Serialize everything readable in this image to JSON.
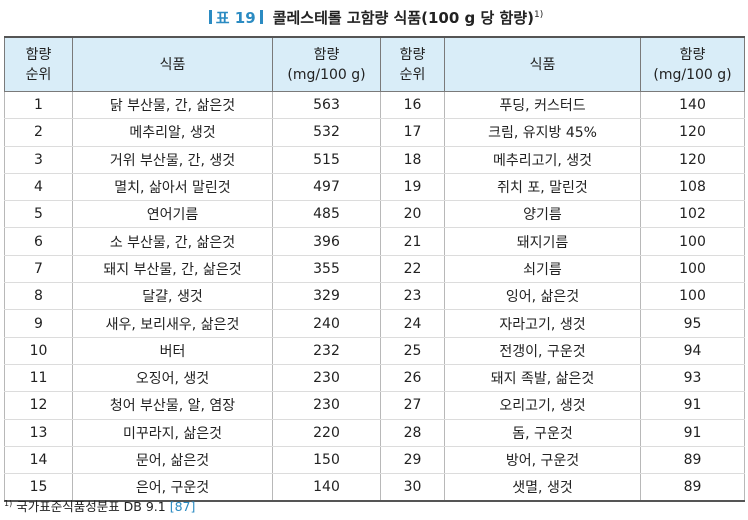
{
  "title": {
    "tag": "표 19",
    "main": "콜레스테롤 고함량 식품(100 g 당 함량)",
    "sup": "1)"
  },
  "headers": {
    "rank": [
      "함량",
      "순위"
    ],
    "food": "식품",
    "amount": [
      "함량",
      "(mg/100 g)"
    ]
  },
  "rows": [
    {
      "l": {
        "rank": "1",
        "food": "닭 부산물, 간, 삶은것",
        "amount": "563"
      },
      "r": {
        "rank": "16",
        "food": "푸딩, 커스터드",
        "amount": "140"
      }
    },
    {
      "l": {
        "rank": "2",
        "food": "메추리알, 생것",
        "amount": "532"
      },
      "r": {
        "rank": "17",
        "food": "크림, 유지방 45%",
        "amount": "120"
      }
    },
    {
      "l": {
        "rank": "3",
        "food": "거위 부산물, 간, 생것",
        "amount": "515"
      },
      "r": {
        "rank": "18",
        "food": "메추리고기, 생것",
        "amount": "120"
      }
    },
    {
      "l": {
        "rank": "4",
        "food": "멸치, 삶아서 말린것",
        "amount": "497"
      },
      "r": {
        "rank": "19",
        "food": "쥐치 포, 말린것",
        "amount": "108"
      }
    },
    {
      "l": {
        "rank": "5",
        "food": "연어기름",
        "amount": "485"
      },
      "r": {
        "rank": "20",
        "food": "양기름",
        "amount": "102"
      }
    },
    {
      "l": {
        "rank": "6",
        "food": "소 부산물, 간, 삶은것",
        "amount": "396"
      },
      "r": {
        "rank": "21",
        "food": "돼지기름",
        "amount": "100"
      }
    },
    {
      "l": {
        "rank": "7",
        "food": "돼지 부산물, 간, 삶은것",
        "amount": "355"
      },
      "r": {
        "rank": "22",
        "food": "쇠기름",
        "amount": "100"
      }
    },
    {
      "l": {
        "rank": "8",
        "food": "달걀, 생것",
        "amount": "329"
      },
      "r": {
        "rank": "23",
        "food": "잉어, 삶은것",
        "amount": "100"
      }
    },
    {
      "l": {
        "rank": "9",
        "food": "새우, 보리새우, 삶은것",
        "amount": "240"
      },
      "r": {
        "rank": "24",
        "food": "자라고기, 생것",
        "amount": "95"
      }
    },
    {
      "l": {
        "rank": "10",
        "food": "버터",
        "amount": "232"
      },
      "r": {
        "rank": "25",
        "food": "전갱이, 구운것",
        "amount": "94"
      }
    },
    {
      "l": {
        "rank": "11",
        "food": "오징어, 생것",
        "amount": "230"
      },
      "r": {
        "rank": "26",
        "food": "돼지 족발, 삶은것",
        "amount": "93"
      }
    },
    {
      "l": {
        "rank": "12",
        "food": "청어 부산물, 알, 염장",
        "amount": "230"
      },
      "r": {
        "rank": "27",
        "food": "오리고기, 생것",
        "amount": "91"
      }
    },
    {
      "l": {
        "rank": "13",
        "food": "미꾸라지, 삶은것",
        "amount": "220"
      },
      "r": {
        "rank": "28",
        "food": "돔, 구운것",
        "amount": "91"
      }
    },
    {
      "l": {
        "rank": "14",
        "food": "문어, 삶은것",
        "amount": "150"
      },
      "r": {
        "rank": "29",
        "food": "방어, 구운것",
        "amount": "89"
      }
    },
    {
      "l": {
        "rank": "15",
        "food": "은어, 구운것",
        "amount": "140"
      },
      "r": {
        "rank": "30",
        "food": "샛멸, 생것",
        "amount": "89"
      }
    }
  ],
  "footnote": {
    "marker": "1)",
    "text": "국가표준식품성분표 DB 9.1",
    "ref": "[87]"
  },
  "colors": {
    "accent": "#2b8bc2",
    "header_bg": "#d9edf8"
  }
}
